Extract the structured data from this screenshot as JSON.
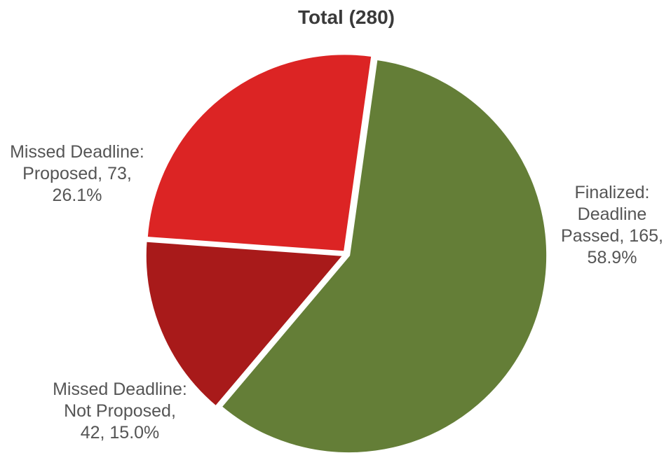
{
  "chart_data": {
    "type": "pie",
    "title": "Total (280)",
    "categories": [
      "Finalized: Deadline Passed",
      "Missed Deadline: Not Proposed",
      "Missed Deadline: Proposed"
    ],
    "values": [
      165,
      42,
      73
    ],
    "percentages": [
      58.9,
      15.0,
      26.1
    ],
    "colors": [
      "#647e37",
      "#a81a1a",
      "#dc2424"
    ],
    "data_labels": [
      [
        "Finalized:",
        "Deadline",
        "Passed, 165,",
        "58.9%"
      ],
      [
        "Missed Deadline:",
        "Not Proposed,",
        "42, 15.0%"
      ],
      [
        "Missed Deadline:",
        "Proposed, 73,",
        "26.1%"
      ]
    ],
    "legend": "none",
    "start_angle_deg": 8,
    "direction": "clockwise",
    "exploded": true
  }
}
